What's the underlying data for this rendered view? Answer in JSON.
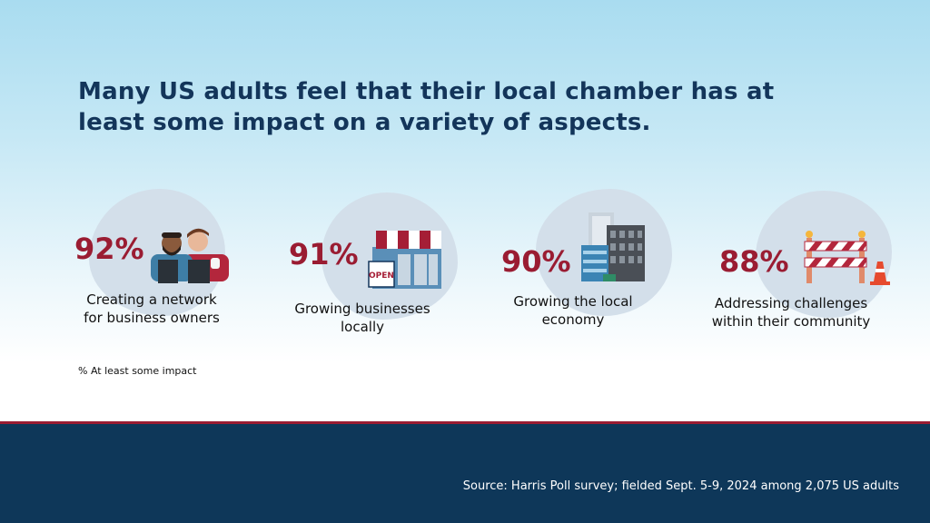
{
  "headline": "Many US adults feel that their local chamber has at least some impact on a variety of aspects.",
  "chart_data": {
    "type": "bar",
    "unit": "% At least some impact",
    "categories": [
      "Creating a network for business owners",
      "Growing businesses locally",
      "Growing the local economy",
      "Addressing challenges within their community"
    ],
    "values": [
      92,
      91,
      90,
      88
    ]
  },
  "stats": [
    {
      "value": "92%",
      "label_line1": "Creating a network",
      "label_line2": "for business owners",
      "icon": "business-owners-icon"
    },
    {
      "value": "91%",
      "label_line1": "Growing businesses",
      "label_line2": "locally",
      "icon": "storefront-icon",
      "sign_text": "OPEN"
    },
    {
      "value": "90%",
      "label_line1": "Growing the local",
      "label_line2": "economy",
      "icon": "city-buildings-icon"
    },
    {
      "value": "88%",
      "label_line1": "Addressing challenges",
      "label_line2": "within their community",
      "icon": "road-barrier-icon"
    }
  ],
  "note": "% At least some impact",
  "source": "Source: Harris Poll survey; fielded Sept. 5-9, 2024 among 2,075 US adults",
  "colors": {
    "headline": "#13355a",
    "percent": "#9a1c32",
    "footer": "#0e3759",
    "blob": "#d3dfea"
  }
}
